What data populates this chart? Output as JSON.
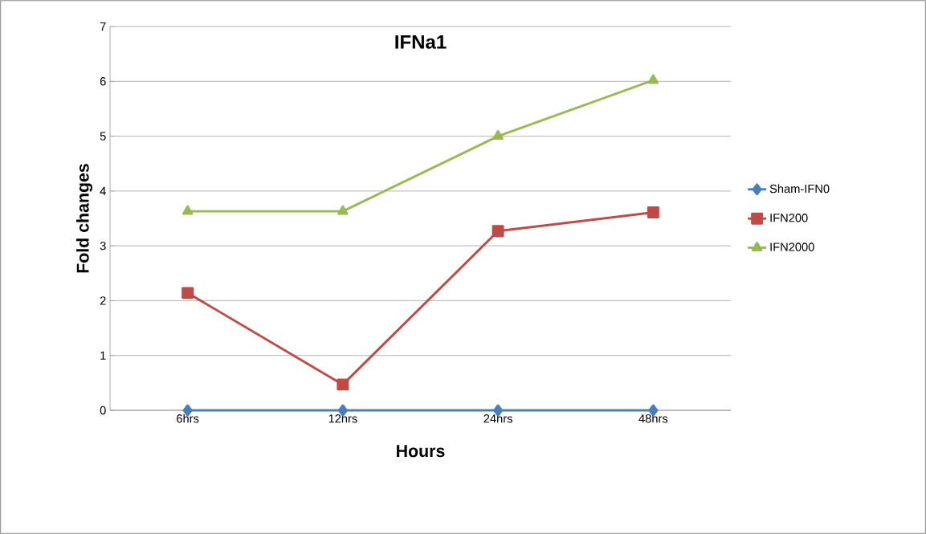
{
  "chart_data": {
    "type": "line",
    "title": "IFNa1",
    "xlabel": "Hours",
    "ylabel": "Fold changes",
    "categories": [
      "6hrs",
      "12hrs",
      "24hrs",
      "48hrs"
    ],
    "series": [
      {
        "name": "Sham-IFN0",
        "color": "#4a7ebb",
        "marker": "diamond",
        "values": [
          0,
          0,
          0,
          0
        ]
      },
      {
        "name": "IFN200",
        "color": "#be4b48",
        "marker": "square",
        "values": [
          2.14,
          0.47,
          3.27,
          3.61
        ]
      },
      {
        "name": "IFN2000",
        "color": "#98b954",
        "marker": "triangle",
        "values": [
          3.63,
          3.63,
          5.0,
          6.02
        ]
      }
    ],
    "ylim": [
      0,
      7
    ],
    "yticks": [
      0,
      1,
      2,
      3,
      4,
      5,
      6,
      7
    ],
    "grid": "y",
    "legend": "right",
    "line_style": "solid"
  }
}
